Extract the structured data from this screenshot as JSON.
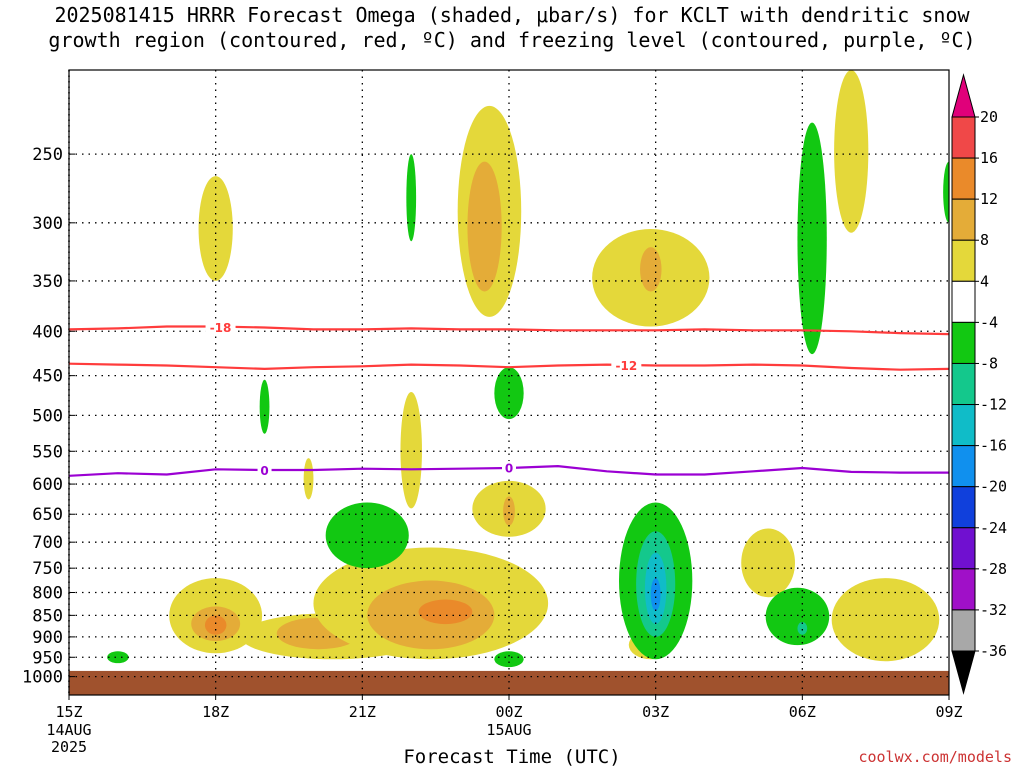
{
  "header": {
    "title_line1": "2025081415 HRRR Forecast Omega (shaded, μbar/s) for KCLT with dendritic snow",
    "title_line2": "growth region (contoured, red, ºC) and freezing level (contoured, purple, ºC)"
  },
  "footer": {
    "xlabel": "Forecast Time (UTC)",
    "credit": "coolwx.com/models"
  },
  "chart_data": {
    "type": "heatmap",
    "x_ticks": [
      {
        "hour": 15,
        "label": "15Z",
        "sub": [
          "14AUG",
          "2025"
        ]
      },
      {
        "hour": 18,
        "label": "18Z",
        "sub": []
      },
      {
        "hour": 21,
        "label": "21Z",
        "sub": []
      },
      {
        "hour": 24,
        "label": "00Z",
        "sub": [
          "15AUG"
        ]
      },
      {
        "hour": 27,
        "label": "03Z",
        "sub": []
      },
      {
        "hour": 30,
        "label": "06Z",
        "sub": []
      },
      {
        "hour": 33,
        "label": "09Z",
        "sub": []
      }
    ],
    "x_range_hours": [
      15,
      33
    ],
    "y_axis": {
      "label": "",
      "log_scale": true,
      "range_hPa": [
        1050,
        200
      ],
      "ticks": [
        250,
        300,
        350,
        400,
        450,
        500,
        550,
        600,
        650,
        700,
        750,
        800,
        850,
        900,
        950,
        1000
      ]
    },
    "grid": true,
    "ground_below_hPa": 985,
    "colorbar": {
      "labels": [
        "20",
        "16",
        "12",
        "8",
        "4",
        "-4",
        "-8",
        "-12",
        "-16",
        "-20",
        "-24",
        "-28",
        "-32",
        "-36"
      ],
      "colors": [
        "#e0007a",
        "#f04848",
        "#ea8a2a",
        "#e4ac38",
        "#e4d83a",
        "#ffffff",
        "#12c812",
        "#14c88c",
        "#10bcc8",
        "#1090ee",
        "#1040dc",
        "#7010d0",
        "#a010c8",
        "#a8a8a8",
        "#000000"
      ]
    },
    "shading_colors": {
      "omega_4_8": "#e4d83a",
      "omega_8_12": "#e4ac38",
      "omega_12_16": "#ea8a2a",
      "omega_m4_m8": "#12c812",
      "omega_m8_m12": "#14c88c",
      "omega_m12_m16": "#10bcc8",
      "omega_m16_m20": "#1090ee",
      "ground": "#a0522d"
    },
    "contours": [
      {
        "name": "-18",
        "color": "#ff3c3c",
        "points": [
          [
            15,
            398
          ],
          [
            16,
            397
          ],
          [
            17,
            395
          ],
          [
            18,
            395
          ],
          [
            19,
            396
          ],
          [
            20,
            398
          ],
          [
            21,
            398
          ],
          [
            22,
            397
          ],
          [
            23,
            398
          ],
          [
            24,
            398
          ],
          [
            25,
            399
          ],
          [
            26,
            399
          ],
          [
            27,
            399
          ],
          [
            28,
            398
          ],
          [
            29,
            399
          ],
          [
            30,
            399
          ],
          [
            31,
            400
          ],
          [
            32,
            402
          ],
          [
            33,
            403
          ]
        ]
      },
      {
        "name": "-12",
        "color": "#ff3c3c",
        "points": [
          [
            15,
            436
          ],
          [
            16,
            437
          ],
          [
            17,
            438
          ],
          [
            18,
            440
          ],
          [
            19,
            442
          ],
          [
            20,
            440
          ],
          [
            21,
            439
          ],
          [
            22,
            437
          ],
          [
            23,
            438
          ],
          [
            24,
            440
          ],
          [
            25,
            438
          ],
          [
            26,
            437
          ],
          [
            27,
            438
          ],
          [
            28,
            438
          ],
          [
            29,
            437
          ],
          [
            30,
            438
          ],
          [
            31,
            441
          ],
          [
            32,
            443
          ],
          [
            33,
            442
          ]
        ]
      },
      {
        "name": "0",
        "color": "#9b00d3",
        "points": [
          [
            15,
            587
          ],
          [
            16,
            583
          ],
          [
            17,
            585
          ],
          [
            18,
            577
          ],
          [
            19,
            578
          ],
          [
            20,
            578
          ],
          [
            21,
            576
          ],
          [
            22,
            577
          ],
          [
            23,
            576
          ],
          [
            24,
            575
          ],
          [
            25,
            572
          ],
          [
            26,
            580
          ],
          [
            27,
            585
          ],
          [
            28,
            585
          ],
          [
            29,
            580
          ],
          [
            30,
            575
          ],
          [
            31,
            581
          ],
          [
            32,
            582
          ],
          [
            33,
            582
          ]
        ]
      }
    ],
    "contour_labels": [
      {
        "text": "-18",
        "hour": 18.1,
        "hPa": 396,
        "color": "#ff3c3c"
      },
      {
        "text": "-12",
        "hour": 26.4,
        "hPa": 438,
        "color": "#ff3c3c"
      },
      {
        "text": "0",
        "hour": 19.0,
        "hPa": 579,
        "color": "#9b00d3"
      },
      {
        "text": "0",
        "hour": 24.0,
        "hPa": 575,
        "color": "#9b00d3"
      }
    ],
    "shaded_regions": [
      {
        "level": "omega_4_8",
        "cx": 18.0,
        "cy": 300,
        "rx": 0.35,
        "ry_hPa": [
          265,
          350
        ]
      },
      {
        "level": "omega_4_8",
        "cx": 23.6,
        "cy": 290,
        "rx": 0.65,
        "ry_hPa": [
          220,
          385
        ]
      },
      {
        "level": "omega_8_12",
        "cx": 23.5,
        "cy": 310,
        "rx": 0.35,
        "ry_hPa": [
          255,
          360
        ]
      },
      {
        "level": "omega_4_8",
        "cx": 26.9,
        "cy": 355,
        "rx": 1.2,
        "ry_hPa": [
          305,
          395
        ]
      },
      {
        "level": "omega_8_12",
        "cx": 26.9,
        "cy": 340,
        "rx": 0.22,
        "ry_hPa": [
          320,
          360
        ]
      },
      {
        "level": "omega_4_8",
        "cx": 31.0,
        "cy": 265,
        "rx": 0.35,
        "ry_hPa": [
          200,
          308
        ]
      },
      {
        "level": "omega_4_8",
        "cx": 19.9,
        "cy": 600,
        "rx": 0.1,
        "ry_hPa": [
          560,
          625
        ]
      },
      {
        "level": "omega_4_8",
        "cx": 22.0,
        "cy": 560,
        "rx": 0.22,
        "ry_hPa": [
          470,
          640
        ]
      },
      {
        "level": "omega_4_8",
        "cx": 24.0,
        "cy": 640,
        "rx": 0.75,
        "ry_hPa": [
          595,
          690
        ]
      },
      {
        "level": "omega_8_12",
        "cx": 24.0,
        "cy": 645,
        "rx": 0.12,
        "ry_hPa": [
          620,
          670
        ]
      },
      {
        "level": "omega_4_8",
        "cx": 18.0,
        "cy": 860,
        "rx": 0.95,
        "ry_hPa": [
          770,
          940
        ]
      },
      {
        "level": "omega_8_12",
        "cx": 18.0,
        "cy": 870,
        "rx": 0.5,
        "ry_hPa": [
          830,
          910
        ]
      },
      {
        "level": "omega_12_16",
        "cx": 18.0,
        "cy": 872,
        "rx": 0.22,
        "ry_hPa": [
          850,
          895
        ]
      },
      {
        "level": "omega_4_8",
        "cx": 20.4,
        "cy": 895,
        "rx": 1.9,
        "ry_hPa": [
          845,
          955
        ]
      },
      {
        "level": "omega_8_12",
        "cx": 20.1,
        "cy": 890,
        "rx": 0.85,
        "ry_hPa": [
          855,
          930
        ]
      },
      {
        "level": "omega_4_8",
        "cx": 22.4,
        "cy": 850,
        "rx": 2.4,
        "ry_hPa": [
          710,
          955
        ]
      },
      {
        "level": "omega_8_12",
        "cx": 22.4,
        "cy": 850,
        "rx": 1.3,
        "ry_hPa": [
          775,
          930
        ]
      },
      {
        "level": "omega_12_16",
        "cx": 22.7,
        "cy": 840,
        "rx": 0.55,
        "ry_hPa": [
          815,
          870
        ]
      },
      {
        "level": "omega_4_8",
        "cx": 26.9,
        "cy": 920,
        "rx": 0.45,
        "ry_hPa": [
          885,
          955
        ]
      },
      {
        "level": "omega_4_8",
        "cx": 26.9,
        "cy": 720,
        "rx": 0.2,
        "ry_hPa": [
          660,
          800
        ]
      },
      {
        "level": "omega_4_8",
        "cx": 29.3,
        "cy": 735,
        "rx": 0.55,
        "ry_hPa": [
          675,
          810
        ]
      },
      {
        "level": "omega_4_8",
        "cx": 31.7,
        "cy": 870,
        "rx": 1.1,
        "ry_hPa": [
          770,
          960
        ]
      },
      {
        "level": "omega_m4_m8",
        "cx": 22.0,
        "cy": 280,
        "rx": 0.1,
        "ry_hPa": [
          250,
          315
        ]
      },
      {
        "level": "omega_m4_m8",
        "cx": 30.2,
        "cy": 310,
        "rx": 0.3,
        "ry_hPa": [
          230,
          425
        ]
      },
      {
        "level": "omega_m4_m8",
        "cx": 33.0,
        "cy": 280,
        "rx": 0.12,
        "ry_hPa": [
          255,
          300
        ]
      },
      {
        "level": "omega_m4_m8",
        "cx": 19.0,
        "cy": 485,
        "rx": 0.1,
        "ry_hPa": [
          455,
          525
        ]
      },
      {
        "level": "omega_m4_m8",
        "cx": 24.0,
        "cy": 470,
        "rx": 0.3,
        "ry_hPa": [
          440,
          505
        ]
      },
      {
        "level": "omega_m4_m8",
        "cx": 21.1,
        "cy": 690,
        "rx": 0.85,
        "ry_hPa": [
          630,
          750
        ]
      },
      {
        "level": "omega_m4_m8",
        "cx": 27.0,
        "cy": 800,
        "rx": 0.75,
        "ry_hPa": [
          630,
          955
        ]
      },
      {
        "level": "omega_m8_m12",
        "cx": 27.0,
        "cy": 790,
        "rx": 0.4,
        "ry_hPa": [
          680,
          900
        ]
      },
      {
        "level": "omega_m12_m16",
        "cx": 27.0,
        "cy": 790,
        "rx": 0.22,
        "ry_hPa": [
          720,
          870
        ]
      },
      {
        "level": "omega_m16_m20",
        "cx": 27.0,
        "cy": 800,
        "rx": 0.1,
        "ry_hPa": [
          770,
          840
        ]
      },
      {
        "level": "omega_m4_m8",
        "cx": 29.9,
        "cy": 860,
        "rx": 0.65,
        "ry_hPa": [
          790,
          920
        ]
      },
      {
        "level": "omega_m8_m12",
        "cx": 30.0,
        "cy": 880,
        "rx": 0.1,
        "ry_hPa": [
          865,
          895
        ]
      },
      {
        "level": "omega_m4_m8",
        "cx": 16.0,
        "cy": 950,
        "rx": 0.22,
        "ry_hPa": [
          935,
          965
        ]
      },
      {
        "level": "omega_m4_m8",
        "cx": 24.0,
        "cy": 955,
        "rx": 0.3,
        "ry_hPa": [
          935,
          975
        ]
      }
    ]
  }
}
